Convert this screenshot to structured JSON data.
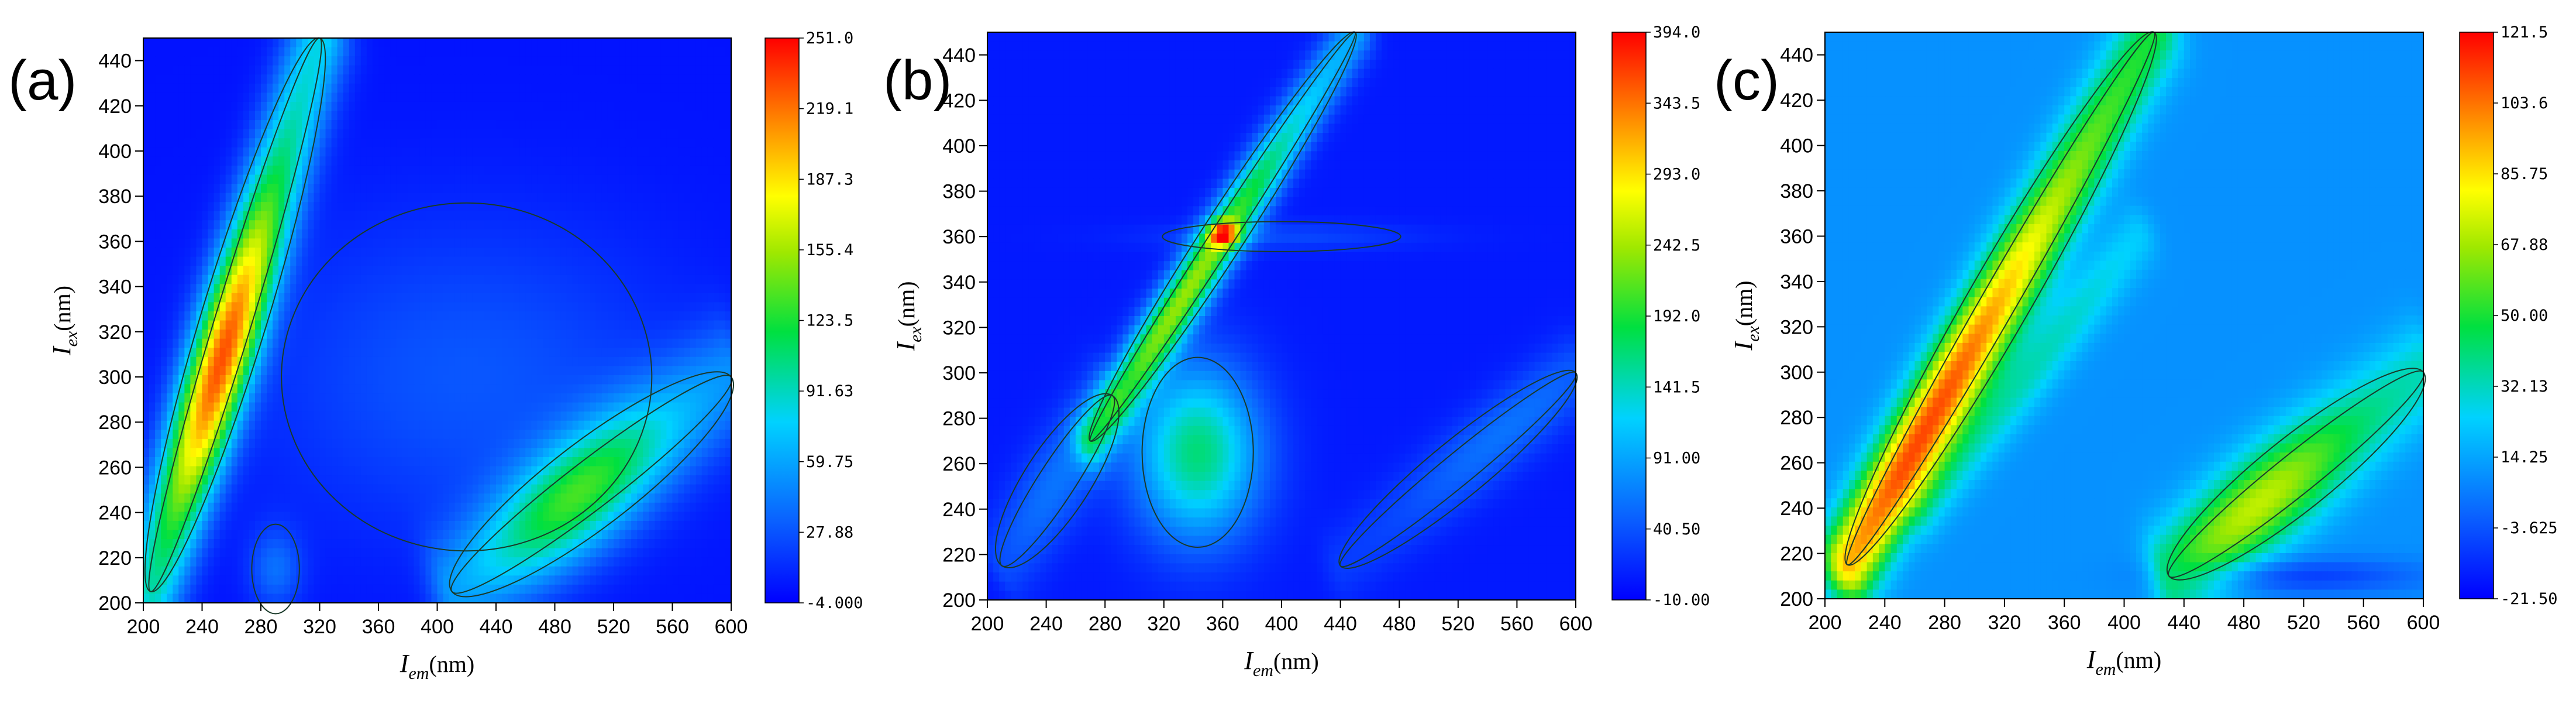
{
  "chart_data": [
    {
      "type": "heatmap",
      "panel_label": "(a)",
      "xlabel": {
        "main": "I",
        "sub": "em",
        "unit": "(nm)"
      },
      "ylabel": {
        "main": "I",
        "sub": "ex",
        "unit": "(nm)"
      },
      "xlim": [
        200,
        600
      ],
      "ylim": [
        200,
        450
      ],
      "x_ticks": [
        "200",
        "240",
        "280",
        "320",
        "360",
        "400",
        "440",
        "480",
        "520",
        "560",
        "600"
      ],
      "y_ticks": [
        "200",
        "220",
        "240",
        "260",
        "280",
        "300",
        "320",
        "340",
        "360",
        "380",
        "400",
        "420",
        "440"
      ],
      "colorbar": {
        "min": -4.0,
        "max": 251.0,
        "labels": [
          "251.0",
          "219.1",
          "187.3",
          "155.4",
          "123.5",
          "91.63",
          "59.75",
          "27.88",
          "-4.000"
        ]
      },
      "background_value": 3,
      "features": [
        {
          "kind": "band",
          "x0": 205,
          "y0": 205,
          "x1": 320,
          "y1": 450,
          "width": 14,
          "peak": 220,
          "peak_pos": 0.42,
          "peak_spread": 0.28
        },
        {
          "kind": "band",
          "x0": 410,
          "y0": 205,
          "x1": 600,
          "y1": 300,
          "width": 18,
          "peak": 120,
          "peak_pos": 0.45,
          "peak_spread": 0.3
        },
        {
          "kind": "blob",
          "x": 420,
          "y": 300,
          "rx": 140,
          "ry": 70,
          "peak": 26
        },
        {
          "kind": "blob",
          "x": 290,
          "y": 215,
          "rx": 18,
          "ry": 18,
          "peak": 34
        }
      ]
    },
    {
      "type": "heatmap",
      "panel_label": "(b)",
      "xlabel": {
        "main": "I",
        "sub": "em",
        "unit": "(nm)"
      },
      "ylabel": {
        "main": "I",
        "sub": "ex",
        "unit": "(nm)"
      },
      "xlim": [
        200,
        600
      ],
      "ylim": [
        200,
        450
      ],
      "x_ticks": [
        "200",
        "240",
        "280",
        "320",
        "360",
        "400",
        "440",
        "480",
        "520",
        "560",
        "600"
      ],
      "y_ticks": [
        "200",
        "220",
        "240",
        "260",
        "280",
        "300",
        "320",
        "340",
        "360",
        "380",
        "400",
        "420",
        "440"
      ],
      "colorbar": {
        "min": -10.0,
        "max": 394.0,
        "labels": [
          "394.0",
          "343.5",
          "293.0",
          "242.5",
          "192.0",
          "141.5",
          "91.00",
          "40.50",
          "-10.00"
        ]
      },
      "background_value": 5,
      "features": [
        {
          "kind": "band",
          "x0": 270,
          "y0": 270,
          "x1": 450,
          "y1": 450,
          "width": 9,
          "peak": 230,
          "peak_pos": 0.4,
          "peak_spread": 0.35
        },
        {
          "kind": "band",
          "x0": 210,
          "y0": 215,
          "x1": 285,
          "y1": 290,
          "width": 14,
          "peak": 55,
          "peak_pos": 0.5,
          "peak_spread": 0.5
        },
        {
          "kind": "blob",
          "x": 343,
          "y": 265,
          "rx": 42,
          "ry": 38,
          "peak": 160
        },
        {
          "kind": "blob",
          "x": 360,
          "y": 361,
          "rx": 10,
          "ry": 5,
          "peak": 190
        },
        {
          "kind": "band",
          "x0": 440,
          "y0": 215,
          "x1": 600,
          "y1": 300,
          "width": 12,
          "peak": 55,
          "peak_pos": 0.7,
          "peak_spread": 0.4
        },
        {
          "kind": "blob",
          "x": 400,
          "y": 360,
          "rx": 90,
          "ry": 6,
          "peak": 28
        }
      ]
    },
    {
      "type": "heatmap",
      "panel_label": "(c)",
      "xlabel": {
        "main": "I",
        "sub": "em",
        "unit": "(nm)"
      },
      "ylabel": {
        "main": "I",
        "sub": "ex",
        "unit": "(nm)"
      },
      "xlim": [
        200,
        600
      ],
      "ylim": [
        200,
        450
      ],
      "x_ticks": [
        "200",
        "240",
        "280",
        "320",
        "360",
        "400",
        "440",
        "480",
        "520",
        "560",
        "600"
      ],
      "y_ticks": [
        "200",
        "220",
        "240",
        "260",
        "280",
        "300",
        "320",
        "340",
        "360",
        "380",
        "400",
        "420",
        "440"
      ],
      "colorbar": {
        "min": -21.5,
        "max": 121.5,
        "labels": [
          "121.5",
          "103.6",
          "85.75",
          "67.88",
          "50.00",
          "32.13",
          "14.25",
          "-3.625",
          "-21.50"
        ]
      },
      "background_value": 10,
      "features": [
        {
          "kind": "band",
          "x0": 215,
          "y0": 215,
          "x1": 420,
          "y1": 450,
          "width": 13,
          "peak": 100,
          "peak_pos": 0.25,
          "peak_spread": 0.45
        },
        {
          "kind": "band",
          "x0": 265,
          "y0": 240,
          "x1": 410,
          "y1": 360,
          "width": 10,
          "peak": 22,
          "peak_pos": 0.5,
          "peak_spread": 0.5
        },
        {
          "kind": "band",
          "x0": 430,
          "y0": 210,
          "x1": 600,
          "y1": 300,
          "width": 15,
          "peak": 62,
          "peak_pos": 0.35,
          "peak_spread": 0.35
        },
        {
          "kind": "blob",
          "x": 520,
          "y": 210,
          "rx": 80,
          "ry": 8,
          "peak": -18
        }
      ]
    }
  ]
}
